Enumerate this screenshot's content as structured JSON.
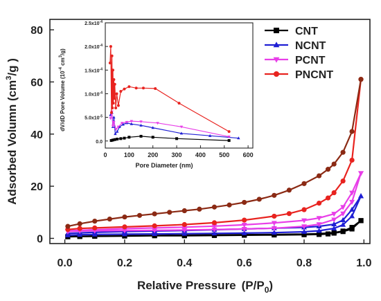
{
  "chart_data": [
    {
      "type": "line",
      "panel": "main",
      "xlabel": "Relative Pressure",
      "xlabel_unit": "(P/P",
      "xlabel_unit_sub": "0",
      "xlabel_unit_close": ")",
      "ylabel": "Adsorbed Volumn (cm",
      "ylabel_sup": "3",
      "ylabel_close": "/g )",
      "xlim": [
        -0.05,
        1.02
      ],
      "ylim": [
        -2,
        84
      ],
      "xticks": [
        "0.0",
        "0.2",
        "0.4",
        "0.6",
        "0.8",
        "1.0"
      ],
      "xtick_values": [
        0,
        0.2,
        0.4,
        0.6,
        0.8,
        1.0
      ],
      "yticks": [
        "0",
        "20",
        "40",
        "60",
        "80"
      ],
      "ytick_values": [
        0,
        20,
        40,
        60,
        80
      ],
      "legend_position": "top-right",
      "series": [
        {
          "name": "CNT",
          "color": "#000000",
          "marker": "square",
          "adsorption": {
            "x": [
              0.01,
              0.05,
              0.1,
              0.2,
              0.3,
              0.4,
              0.5,
              0.6,
              0.7,
              0.8,
              0.85,
              0.88,
              0.9,
              0.93,
              0.96,
              0.99
            ],
            "y": [
              0.6,
              0.7,
              0.8,
              0.9,
              1.0,
              1.0,
              1.1,
              1.2,
              1.3,
              1.4,
              1.5,
              1.7,
              2.0,
              2.6,
              3.6,
              6.8
            ]
          },
          "desorption": {
            "x": [
              0.99,
              0.96,
              0.93,
              0.9,
              0.85,
              0.8,
              0.7,
              0.6,
              0.5,
              0.4,
              0.3,
              0.2,
              0.1,
              0.05,
              0.01
            ],
            "y": [
              6.8,
              4.2,
              2.8,
              2.2,
              1.8,
              1.6,
              1.5,
              1.4,
              1.3,
              1.2,
              1.1,
              1.0,
              0.9,
              0.8,
              0.7
            ]
          }
        },
        {
          "name": "NCNT",
          "color": "#1f1fd4",
          "marker": "triangle",
          "adsorption": {
            "x": [
              0.01,
              0.05,
              0.1,
              0.2,
              0.3,
              0.4,
              0.5,
              0.6,
              0.7,
              0.8,
              0.85,
              0.9,
              0.93,
              0.96,
              0.99
            ],
            "y": [
              1.2,
              1.4,
              1.5,
              1.6,
              1.7,
              1.8,
              1.9,
              2.0,
              2.2,
              2.5,
              2.9,
              3.8,
              5.2,
              8.5,
              16.2
            ]
          },
          "desorption": {
            "x": [
              0.99,
              0.96,
              0.93,
              0.9,
              0.85,
              0.8,
              0.7,
              0.6,
              0.5,
              0.4,
              0.3,
              0.2,
              0.1,
              0.05,
              0.01
            ],
            "y": [
              16.2,
              11.0,
              7.0,
              5.4,
              4.6,
              4.2,
              3.9,
              3.6,
              3.3,
              3.0,
              2.8,
              2.6,
              2.3,
              2.1,
              1.9
            ]
          }
        },
        {
          "name": "PCNT",
          "color": "#e83ee8",
          "marker": "triangle-down",
          "adsorption": {
            "x": [
              0.01,
              0.05,
              0.1,
              0.2,
              0.3,
              0.4,
              0.5,
              0.6,
              0.7,
              0.8,
              0.85,
              0.9,
              0.93,
              0.96,
              0.99
            ],
            "y": [
              2.6,
              2.8,
              2.9,
              3.0,
              3.1,
              3.2,
              3.4,
              3.6,
              3.9,
              4.6,
              5.4,
              7.2,
              9.5,
              14.0,
              25.0
            ]
          },
          "desorption": {
            "x": [
              0.99,
              0.96,
              0.93,
              0.9,
              0.85,
              0.8,
              0.7,
              0.6,
              0.5,
              0.4,
              0.3,
              0.2,
              0.1,
              0.05,
              0.01
            ],
            "y": [
              25.0,
              17.5,
              12.0,
              9.4,
              7.8,
              6.9,
              5.9,
              5.2,
              4.7,
              4.3,
              4.0,
              3.7,
              3.3,
              3.1,
              2.9
            ]
          }
        },
        {
          "name": "PNCNT",
          "color": "#e8231f",
          "marker": "circle",
          "desorption_color": "#8b2a14",
          "adsorption": {
            "x": [
              0.01,
              0.05,
              0.1,
              0.2,
              0.3,
              0.4,
              0.5,
              0.6,
              0.7,
              0.75,
              0.8,
              0.85,
              0.88,
              0.9,
              0.93,
              0.96,
              0.99
            ],
            "y": [
              3.4,
              3.8,
              4.0,
              4.4,
              4.8,
              5.3,
              6.0,
              7.0,
              8.5,
              9.5,
              11.0,
              13.5,
              15.5,
              17.5,
              22.0,
              30.0,
              61.0
            ]
          },
          "desorption": {
            "x": [
              0.99,
              0.96,
              0.93,
              0.9,
              0.88,
              0.85,
              0.8,
              0.75,
              0.7,
              0.65,
              0.6,
              0.55,
              0.5,
              0.45,
              0.4,
              0.35,
              0.3,
              0.25,
              0.2,
              0.15,
              0.1,
              0.05,
              0.01
            ],
            "y": [
              61.0,
              41.0,
              33.0,
              28.5,
              26.5,
              24.0,
              21.0,
              18.5,
              16.5,
              15.0,
              13.8,
              12.8,
              12.0,
              11.2,
              10.6,
              10.0,
              9.4,
              8.8,
              8.2,
              7.4,
              6.6,
              5.6,
              4.6
            ]
          }
        }
      ]
    },
    {
      "type": "line",
      "panel": "inset",
      "xlabel": "Pore Diameter (nm)",
      "ylabel": "dV/dD Pore Volume (10",
      "ylabel_sup": "-4",
      "ylabel_close": " cm",
      "ylabel_sup2": "3",
      "ylabel_close2": "/g)",
      "xlim": [
        0,
        620
      ],
      "ylim": [
        -0.15,
        2.5
      ],
      "xticks": [
        "0",
        "100",
        "200",
        "300",
        "400",
        "500",
        "600"
      ],
      "xtick_values": [
        0,
        100,
        200,
        300,
        400,
        500,
        600
      ],
      "yticks": [
        "0.0",
        "5.0x10",
        "1.0x10",
        "1.5x10",
        "2.0x10",
        "2.5x10"
      ],
      "ytick_exponents": [
        "",
        "-5",
        "-4",
        "-4",
        "-4",
        "-4"
      ],
      "ytick_values": [
        0,
        0.5,
        1.0,
        1.5,
        2.0,
        2.5
      ],
      "series": [
        {
          "name": "CNT",
          "color": "#000000",
          "marker": "square",
          "x": [
            25,
            32,
            40,
            50,
            65,
            80,
            100,
            150,
            200,
            300,
            520
          ],
          "y": [
            0.01,
            0.02,
            0.03,
            0.04,
            0.05,
            0.06,
            0.08,
            0.1,
            0.08,
            0.05,
            0.01
          ]
        },
        {
          "name": "NCNT",
          "color": "#1f1fd4",
          "marker": "triangle",
          "x": [
            22,
            28,
            32,
            36,
            42,
            50,
            60,
            75,
            90,
            110,
            150,
            200,
            320,
            440,
            560
          ],
          "y": [
            0.55,
            0.6,
            0.3,
            0.5,
            0.15,
            0.2,
            0.3,
            0.35,
            0.38,
            0.36,
            0.33,
            0.28,
            0.16,
            0.11,
            0.06
          ]
        },
        {
          "name": "PCNT",
          "color": "#e83ee8",
          "marker": "triangle-down",
          "x": [
            22,
            28,
            32,
            36,
            45,
            55,
            70,
            90,
            110,
            150,
            220,
            320,
            520
          ],
          "y": [
            0.48,
            0.62,
            0.32,
            0.4,
            0.25,
            0.3,
            0.38,
            0.4,
            0.42,
            0.41,
            0.38,
            0.3,
            0.09
          ]
        },
        {
          "name": "PNCNT",
          "color": "#e8231f",
          "marker": "circle",
          "x": [
            20,
            23,
            26,
            28,
            30,
            32,
            34,
            36,
            38,
            40,
            44,
            48,
            55,
            65,
            80,
            100,
            130,
            160,
            210,
            310,
            520
          ],
          "y": [
            1.65,
            2.0,
            0.6,
            1.8,
            0.7,
            1.5,
            0.8,
            1.3,
            0.9,
            1.2,
            0.7,
            1.0,
            0.75,
            1.05,
            1.1,
            1.15,
            1.12,
            1.12,
            1.11,
            0.8,
            0.2
          ]
        }
      ]
    }
  ]
}
